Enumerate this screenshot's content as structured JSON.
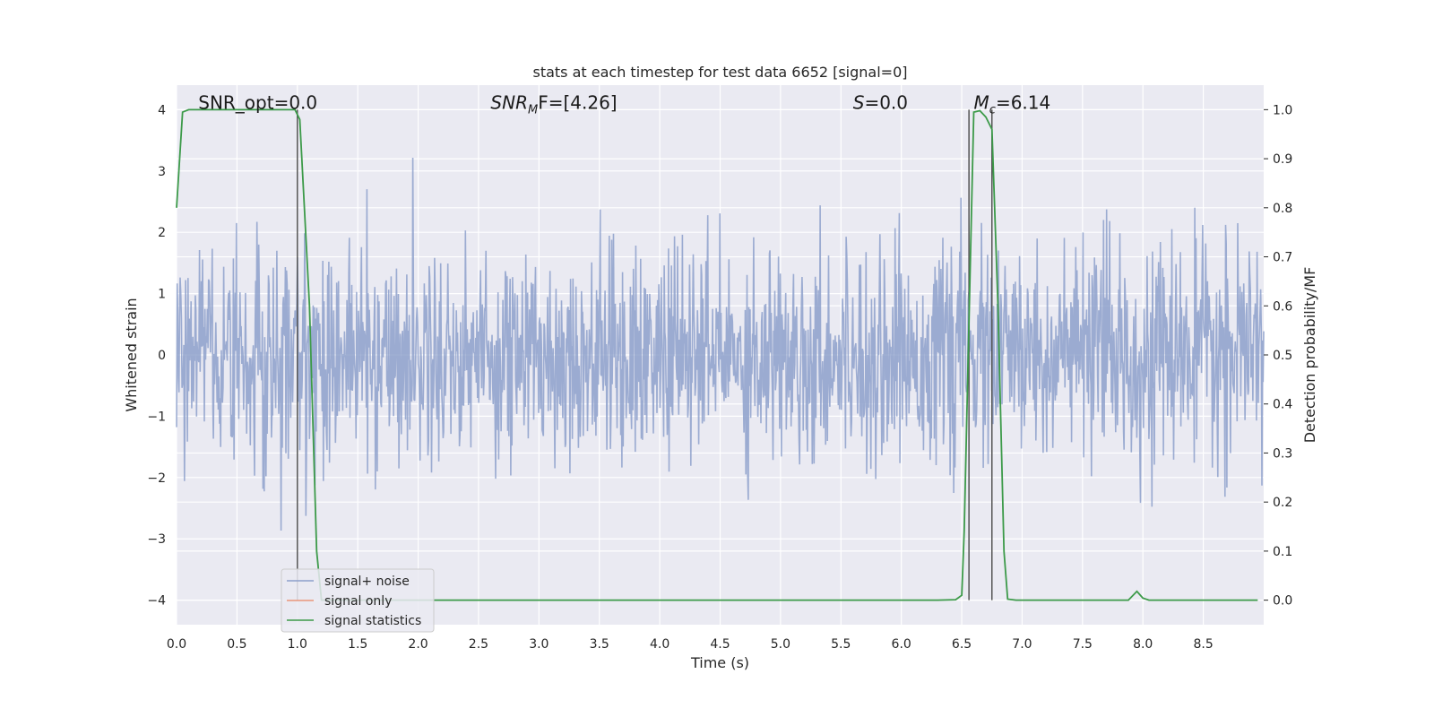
{
  "chart_data": {
    "type": "line",
    "title": "stats at each timestep for test data 6652 [signal=0]",
    "xlabel": "Time (s)",
    "ylabel": "Whitened strain",
    "ylabel_right": "Detection probability/MF",
    "xlim": [
      0,
      9.0
    ],
    "ylim": [
      -4.4,
      4.4
    ],
    "ylim_right": [
      -0.05,
      1.05
    ],
    "xticks": [
      "0.0",
      "0.5",
      "1.0",
      "1.5",
      "2.0",
      "2.5",
      "3.0",
      "3.5",
      "4.0",
      "4.5",
      "5.0",
      "5.5",
      "6.0",
      "6.5",
      "7.0",
      "7.5",
      "8.0",
      "8.5"
    ],
    "yticks": [
      "4",
      "3",
      "2",
      "1",
      "0",
      "−1",
      "−2",
      "−3",
      "−4"
    ],
    "yticks_right": [
      "1.0",
      "0.9",
      "0.8",
      "0.7",
      "0.6",
      "0.5",
      "0.4",
      "0.3",
      "0.2",
      "0.1",
      "0.0"
    ],
    "grid": true,
    "legend_placement": "lower-left",
    "annotations": [
      {
        "name": "snr-opt",
        "text": "SNR_opt=0.0",
        "x": 0.18
      },
      {
        "name": "snr-mf",
        "text": "SNR",
        "sub": "M",
        "rest": "F=[4.26]",
        "x": 2.6
      },
      {
        "name": "s-stat",
        "text": "S",
        "rest": "=0.0",
        "x": 5.6
      },
      {
        "name": "mc",
        "text": "M",
        "sub": "c",
        "rest": "=6.14",
        "x": 6.6
      }
    ],
    "vlines": [
      1.0,
      6.56,
      6.75
    ],
    "series": [
      {
        "name": "signal+ noise",
        "color": "#8da0cb",
        "kind": "noise",
        "sigma": 0.85,
        "samples": 1800,
        "seed": 6652
      },
      {
        "name": "signal only",
        "color": "#e9967a",
        "kind": "empty"
      },
      {
        "name": "signal statistics",
        "color": "#3c9a49",
        "axis": "right",
        "x": [
          0.0,
          0.05,
          0.1,
          0.15,
          0.2,
          0.5,
          0.8,
          0.98,
          1.02,
          1.1,
          1.16,
          1.2,
          1.5,
          2.0,
          3.0,
          4.0,
          5.0,
          6.0,
          6.3,
          6.45,
          6.5,
          6.52,
          6.6,
          6.65,
          6.7,
          6.75,
          6.8,
          6.85,
          6.88,
          6.95,
          7.5,
          7.88,
          7.95,
          8.0,
          8.05,
          8.5,
          8.95
        ],
        "values": [
          0.8,
          0.995,
          1.0,
          1.0,
          1.0,
          1.0,
          1.0,
          1.0,
          0.98,
          0.6,
          0.1,
          0.0,
          0.0,
          0.0,
          0.0,
          0.0,
          0.0,
          0.0,
          0.0,
          0.001,
          0.01,
          0.14,
          0.995,
          0.998,
          0.985,
          0.96,
          0.6,
          0.1,
          0.002,
          0.0,
          0.0,
          0.0,
          0.018,
          0.004,
          0.0,
          0.0,
          0.0
        ]
      }
    ]
  }
}
